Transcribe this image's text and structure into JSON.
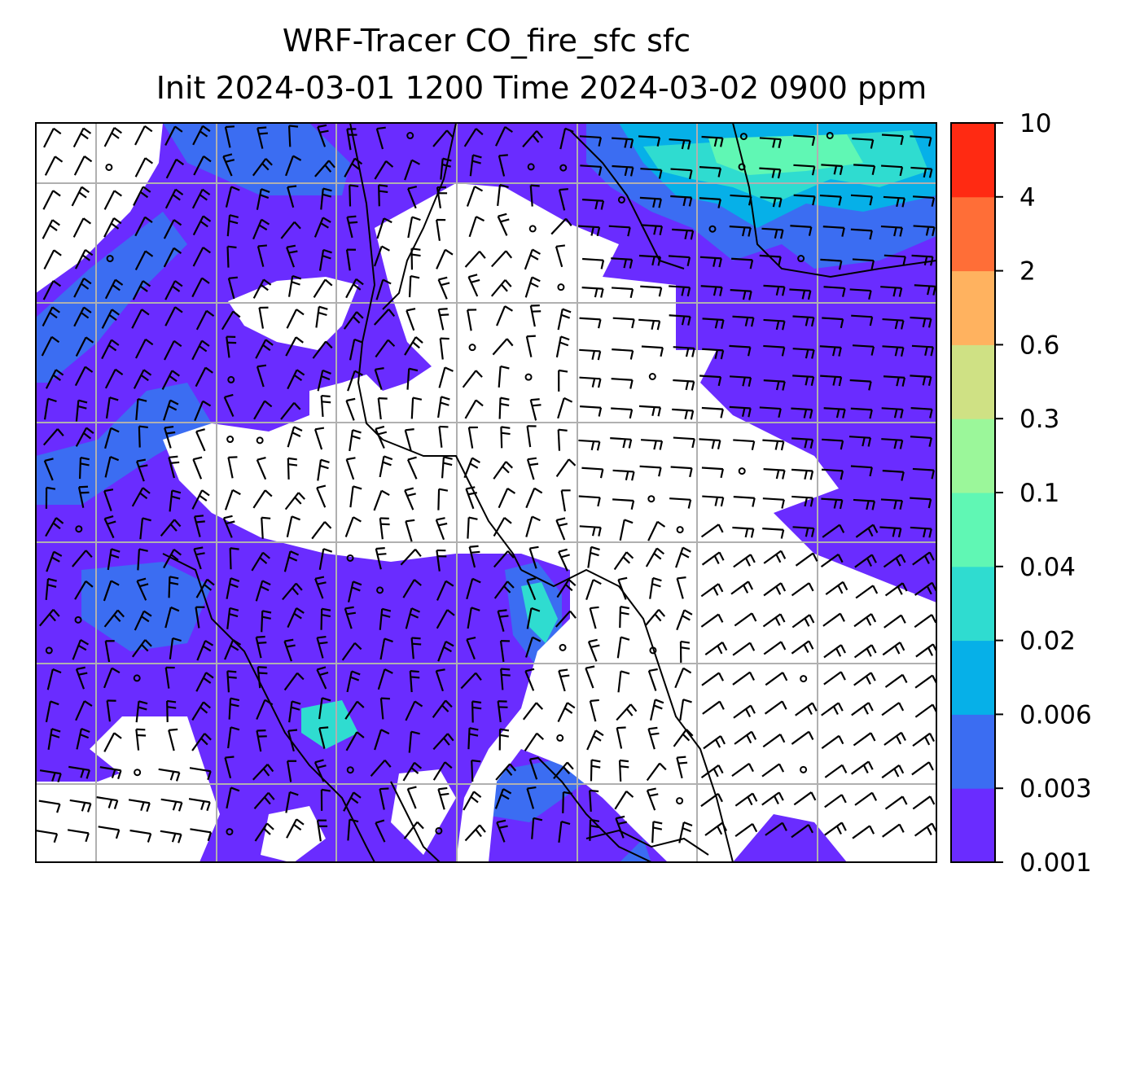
{
  "title": {
    "line1": "WRF-Tracer CO_fire_sfc sfc",
    "line2": "Init 2024-03-01 1200 Time 2024-03-02 0900 ppm"
  },
  "colorbar": {
    "levels": [
      "0.001",
      "0.003",
      "0.006",
      "0.02",
      "0.04",
      "0.1",
      "0.3",
      "0.6",
      "2",
      "4",
      "10"
    ],
    "colors": [
      "#6a2cff",
      "#3b6df2",
      "#06b0e8",
      "#2fdcd0",
      "#60f7b4",
      "#9bf79a",
      "#cfe184",
      "#ffb25f",
      "#ff6e37",
      "#ff2a12"
    ]
  },
  "map": {
    "fill_light": "#3b6df2",
    "fill_base": "#6a2cff",
    "fill_cyan": "#2fdcd0",
    "fill_green": "#60f7b4",
    "gridline_color": "#b0b0b0"
  }
}
